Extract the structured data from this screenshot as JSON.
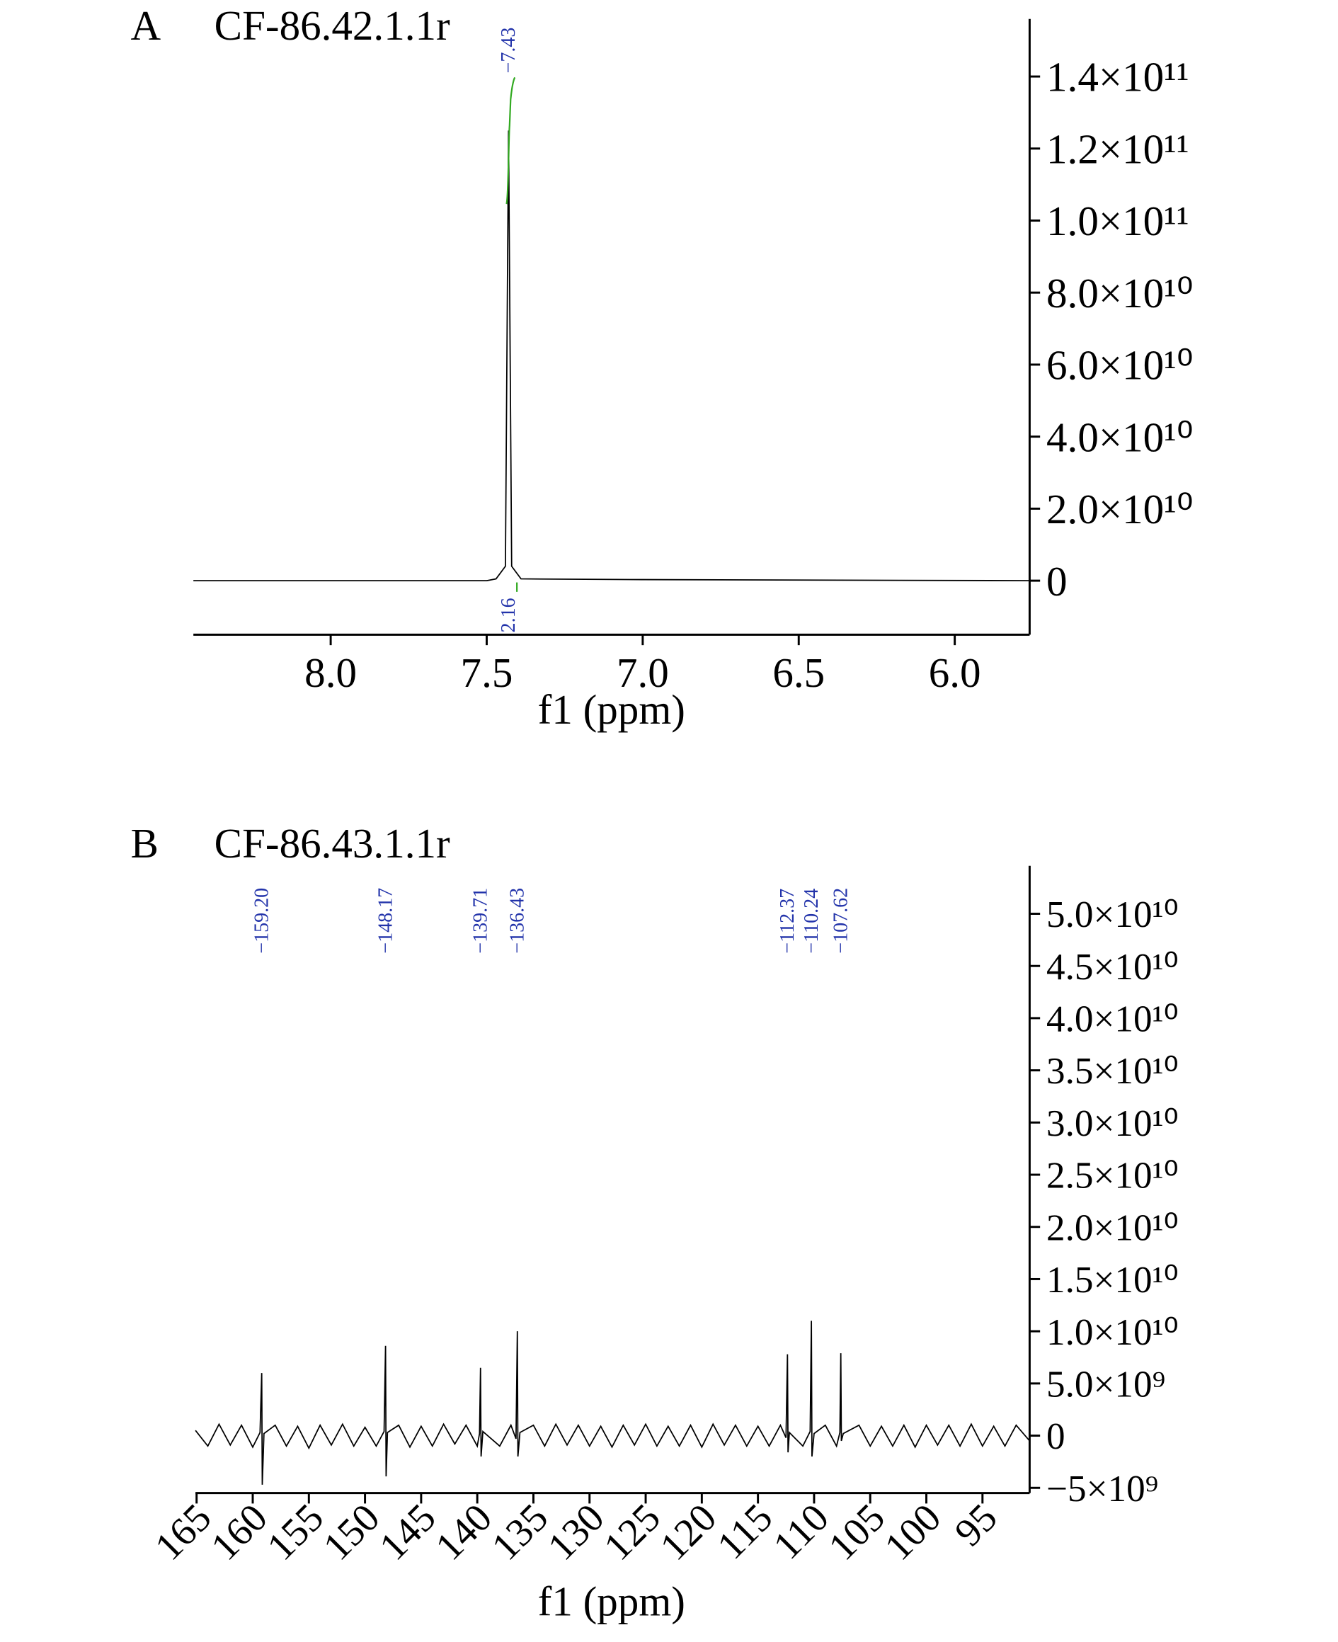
{
  "chart_data": [
    {
      "type": "line",
      "panel": "A",
      "title": "CF-86.42.1.1r",
      "x_label": "f1 (ppm)",
      "xlim": [
        8.44,
        5.76
      ],
      "ylim": [
        -15000000000.0,
        156000000000.0
      ],
      "xticks": [
        {
          "value": 8,
          "label": "8.0"
        },
        {
          "value": 7.5,
          "label": "7.5"
        },
        {
          "value": 7,
          "label": "7.0"
        },
        {
          "value": 6.5,
          "label": "6.5"
        },
        {
          "value": 6,
          "label": "6.0"
        }
      ],
      "yticks": [
        0,
        {
          "value": 20000000000.0,
          "label": "2.0×10¹⁰"
        },
        {
          "value": 40000000000.0,
          "label": "4.0×10¹⁰"
        },
        {
          "value": 60000000000.0,
          "label": "6.0×10¹⁰"
        },
        {
          "value": 80000000000.0,
          "label": "8.0×10¹⁰"
        },
        {
          "value": 100000000000.0,
          "label": "1.0×10¹¹"
        },
        {
          "value": 120000000000.0,
          "label": "1.2×10¹¹"
        },
        {
          "value": 140000000000.0,
          "label": "1.4×10¹¹"
        }
      ],
      "series": [
        {
          "color": "#000000",
          "x": [
            8.44,
            7.5,
            7.47,
            7.44,
            7.43,
            7.42,
            7.39,
            7.0,
            5.76
          ],
          "values": [
            0,
            0,
            500000000.0,
            4000000000.0,
            125000000000.0,
            4000000000.0,
            500000000.0,
            300000000.0,
            0
          ]
        }
      ],
      "annotation_color": "#2233aa",
      "annotations": [
        {
          "x": 7.43,
          "label": "−7.43"
        }
      ],
      "integral": {
        "x": 7.43,
        "value": 2.16,
        "color": "#33aa22"
      }
    },
    {
      "type": "line",
      "panel": "B",
      "title": "CF-86.43.1.1r",
      "x_label": "f1 (ppm)",
      "xlim": [
        165.1,
        90.8
      ],
      "ylim": [
        -5500000000.0,
        54600000000.0
      ],
      "xticks": [
        165,
        160,
        155,
        150,
        145,
        140,
        135,
        130,
        125,
        120,
        115,
        110,
        105,
        100,
        95
      ],
      "yticks": [
        {
          "value": -5000000000.0,
          "label": "−5×10⁹"
        },
        0,
        {
          "value": 5000000000.0,
          "label": "5.0×10⁹"
        },
        {
          "value": 10000000000.0,
          "label": "1.0×10¹⁰"
        },
        {
          "value": 15000000000.0,
          "label": "1.5×10¹⁰"
        },
        {
          "value": 20000000000.0,
          "label": "2.0×10¹⁰"
        },
        {
          "value": 25000000000.0,
          "label": "2.5×10¹⁰"
        },
        {
          "value": 30000000000.0,
          "label": "3.0×10¹⁰"
        },
        {
          "value": 35000000000.0,
          "label": "3.5×10¹⁰"
        },
        {
          "value": 40000000000.0,
          "label": "4.0×10¹⁰"
        },
        {
          "value": 45000000000.0,
          "label": "4.5×10¹⁰"
        },
        {
          "value": 50000000000.0,
          "label": "5.0×10¹⁰"
        }
      ],
      "series": [
        {
          "color": "#000000",
          "x": [
            165.1,
            164,
            163,
            162,
            161,
            160,
            159.35,
            159.2,
            159.15,
            159,
            158,
            157,
            156,
            155,
            154,
            153,
            152,
            151,
            150,
            149,
            148.3,
            148.17,
            148.12,
            148,
            147,
            146,
            145,
            144,
            143,
            142,
            141,
            140,
            139.8,
            139.71,
            139.66,
            139.5,
            138,
            137,
            136.55,
            136.43,
            136.38,
            136.2,
            135,
            134,
            133,
            132,
            131,
            130,
            129,
            128,
            127,
            126,
            125,
            124,
            123,
            122,
            121,
            120,
            119,
            118,
            117,
            116,
            115,
            114,
            113,
            112.5,
            112.37,
            112.32,
            112.2,
            111,
            110.35,
            110.24,
            110.19,
            110,
            109,
            108,
            107.7,
            107.62,
            107.57,
            107.4,
            106,
            105,
            104,
            103,
            102,
            101,
            100,
            99,
            98,
            97,
            96,
            95,
            94,
            93,
            92,
            90.8
          ],
          "values": [
            500000000.0,
            -1000000000.0,
            1100000000.0,
            -900000000.0,
            1000000000.0,
            -1100000000.0,
            300000000.0,
            6000000000.0,
            -4700000000.0,
            200000000.0,
            1000000000.0,
            -1000000000.0,
            900000000.0,
            -1200000000.0,
            1000000000.0,
            -900000000.0,
            1100000000.0,
            -1000000000.0,
            800000000.0,
            -1000000000.0,
            400000000.0,
            8600000000.0,
            -3900000000.0,
            300000000.0,
            1000000000.0,
            -1100000000.0,
            900000000.0,
            -1000000000.0,
            1100000000.0,
            -800000000.0,
            1000000000.0,
            -1000000000.0,
            200000000.0,
            6500000000.0,
            -2000000000.0,
            400000000.0,
            -1000000000.0,
            1000000000.0,
            -300000000.0,
            10000000000.0,
            -2000000000.0,
            300000000.0,
            1000000000.0,
            -1000000000.0,
            1100000000.0,
            -900000000.0,
            1000000000.0,
            -1000000000.0,
            900000000.0,
            -1100000000.0,
            1000000000.0,
            -900000000.0,
            1100000000.0,
            -1000000000.0,
            900000000.0,
            -1000000000.0,
            1000000000.0,
            -1100000000.0,
            1100000000.0,
            -900000000.0,
            1000000000.0,
            -1000000000.0,
            900000000.0,
            -1000000000.0,
            1000000000.0,
            -200000000.0,
            7800000000.0,
            -1600000000.0,
            300000000.0,
            -1000000000.0,
            400000000.0,
            11000000000.0,
            -2000000000.0,
            200000000.0,
            1000000000.0,
            -1000000000.0,
            300000000.0,
            7900000000.0,
            -500000000.0,
            200000000.0,
            1000000000.0,
            -1000000000.0,
            900000000.0,
            -1000000000.0,
            1000000000.0,
            -1100000000.0,
            1000000000.0,
            -900000000.0,
            1000000000.0,
            -1000000000.0,
            1100000000.0,
            -1000000000.0,
            900000000.0,
            -1000000000.0,
            1000000000.0,
            -500000000.0
          ]
        }
      ],
      "annotation_color": "#2233aa",
      "annotations": [
        {
          "x": 159.2,
          "label": "−159.20"
        },
        {
          "x": 148.17,
          "label": "−148.17"
        },
        {
          "x": 139.71,
          "label": "−139.71"
        },
        {
          "x": 136.43,
          "label": "−136.43"
        },
        {
          "x": 112.37,
          "label": "−112.37"
        },
        {
          "x": 110.24,
          "label": "−110.24"
        },
        {
          "x": 107.62,
          "label": "−107.62"
        }
      ]
    }
  ]
}
